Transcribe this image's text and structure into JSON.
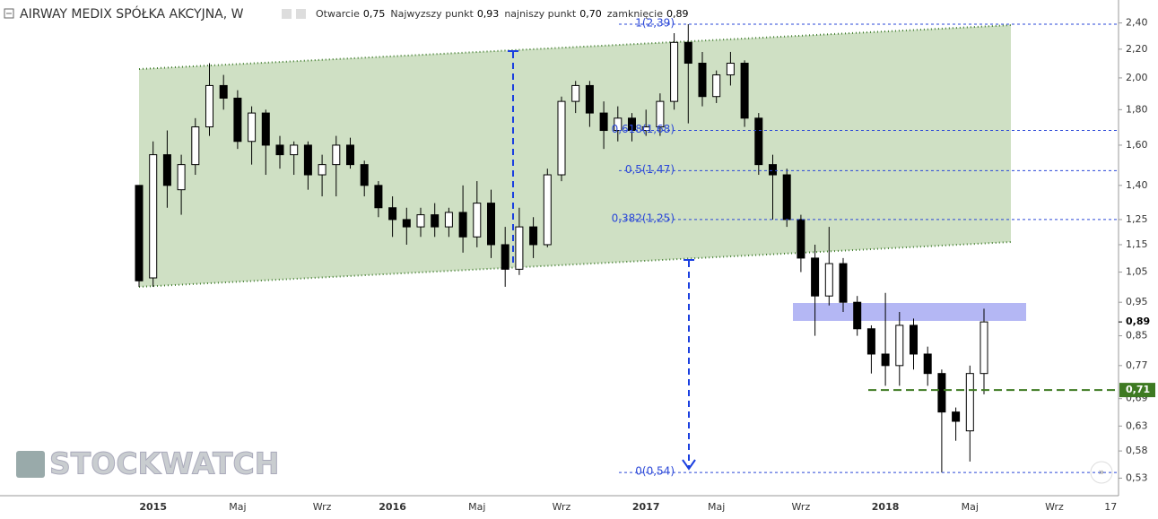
{
  "header": {
    "title": "AIRWAY MEDIX SPÓŁKA AKCYJNA, W",
    "ohlc": [
      {
        "label": "Otwarcie",
        "value": "0,75"
      },
      {
        "label": "Najwyzszy punkt",
        "value": "0,93"
      },
      {
        "label": "najniszy punkt",
        "value": "0,70"
      },
      {
        "label": "zamknięcie",
        "value": "0,89"
      }
    ]
  },
  "watermark": "STOCKWATCH",
  "chart_data": {
    "type": "candlestick",
    "log_scale": true,
    "grid": false,
    "up_color": "#ffffff",
    "down_color": "#000000",
    "categories": [
      null,
      "2015",
      null,
      null,
      null,
      null,
      null,
      "Maj",
      null,
      null,
      null,
      null,
      null,
      "Wrz",
      null,
      null,
      null,
      null,
      "2016",
      null,
      null,
      null,
      null,
      null,
      "Maj",
      null,
      null,
      null,
      null,
      null,
      "Wrz",
      null,
      null,
      null,
      null,
      null,
      "2017",
      null,
      null,
      null,
      null,
      "Maj",
      null,
      null,
      null,
      null,
      null,
      "Wrz",
      null,
      null,
      null,
      null,
      null,
      "2018",
      null,
      null,
      null,
      null,
      null,
      "Maj",
      null,
      null,
      null,
      null,
      null,
      "Wrz",
      null,
      null,
      null,
      "17"
    ],
    "open": [
      1.4,
      1.03,
      1.55,
      1.38,
      1.5,
      1.7,
      1.95,
      1.87,
      1.62,
      1.78,
      1.6,
      1.55,
      1.6,
      1.45,
      1.5,
      1.6,
      1.5,
      1.4,
      1.3,
      1.25,
      1.22,
      1.27,
      1.22,
      1.28,
      1.18,
      1.32,
      1.15,
      1.06,
      1.22,
      1.15,
      1.45,
      1.85,
      1.95,
      1.78,
      1.68,
      1.75,
      1.68,
      1.7,
      1.85,
      2.25,
      2.1,
      1.88,
      2.02,
      2.1,
      1.75,
      1.5,
      1.45,
      1.25,
      1.1,
      0.97,
      1.08,
      0.95,
      0.87,
      0.8,
      0.77,
      0.88,
      0.8,
      0.75,
      0.66,
      0.62,
      0.75,
      null,
      null,
      null,
      null,
      null,
      null,
      null,
      null,
      null
    ],
    "high": [
      1.4,
      1.62,
      1.68,
      1.55,
      1.75,
      2.1,
      2.02,
      1.92,
      1.82,
      1.8,
      1.65,
      1.62,
      1.62,
      1.55,
      1.65,
      1.64,
      1.52,
      1.42,
      1.35,
      1.3,
      1.3,
      1.32,
      1.3,
      1.4,
      1.42,
      1.38,
      1.22,
      1.3,
      1.26,
      1.48,
      1.88,
      1.98,
      1.98,
      1.85,
      1.82,
      1.78,
      1.8,
      1.9,
      2.32,
      2.39,
      2.18,
      2.05,
      2.18,
      2.12,
      1.78,
      1.55,
      1.48,
      1.27,
      1.15,
      1.22,
      1.1,
      0.97,
      0.88,
      0.98,
      0.92,
      0.9,
      0.82,
      0.76,
      0.67,
      0.77,
      0.93,
      null,
      null,
      null,
      null,
      null,
      null,
      null,
      null,
      null
    ],
    "low": [
      1.0,
      1.0,
      1.3,
      1.27,
      1.45,
      1.65,
      1.8,
      1.58,
      1.5,
      1.45,
      1.48,
      1.45,
      1.38,
      1.35,
      1.35,
      1.48,
      1.35,
      1.26,
      1.18,
      1.15,
      1.18,
      1.18,
      1.18,
      1.12,
      1.14,
      1.1,
      1.0,
      1.04,
      1.1,
      1.14,
      1.42,
      1.78,
      1.7,
      1.58,
      1.62,
      1.62,
      1.65,
      1.65,
      1.8,
      1.72,
      1.82,
      1.84,
      1.95,
      1.7,
      1.45,
      1.25,
      1.22,
      1.05,
      0.85,
      0.94,
      0.92,
      0.85,
      0.75,
      0.72,
      0.72,
      0.76,
      0.72,
      0.54,
      0.6,
      0.56,
      0.7,
      null,
      null,
      null,
      null,
      null,
      null,
      null,
      null,
      null
    ],
    "close": [
      1.02,
      1.55,
      1.4,
      1.5,
      1.7,
      1.95,
      1.87,
      1.62,
      1.78,
      1.6,
      1.55,
      1.6,
      1.45,
      1.5,
      1.6,
      1.5,
      1.4,
      1.3,
      1.25,
      1.22,
      1.27,
      1.22,
      1.28,
      1.18,
      1.32,
      1.15,
      1.06,
      1.22,
      1.15,
      1.45,
      1.85,
      1.95,
      1.78,
      1.68,
      1.75,
      1.68,
      1.7,
      1.85,
      2.25,
      2.1,
      1.88,
      2.02,
      2.1,
      1.75,
      1.5,
      1.45,
      1.25,
      1.1,
      0.97,
      1.08,
      0.95,
      0.87,
      0.8,
      0.77,
      0.88,
      0.8,
      0.75,
      0.66,
      0.64,
      0.75,
      0.89,
      null,
      null,
      null,
      null,
      null,
      null,
      null,
      null,
      null
    ],
    "ylim": [
      0.5,
      2.59
    ],
    "yticks": [
      {
        "value": 2.4,
        "label": "2,40"
      },
      {
        "value": 2.2,
        "label": "2,20"
      },
      {
        "value": 2.0,
        "label": "2,00"
      },
      {
        "value": 1.8,
        "label": "1,80"
      },
      {
        "value": 1.6,
        "label": "1,60"
      },
      {
        "value": 1.4,
        "label": "1,40"
      },
      {
        "value": 1.25,
        "label": "1,25"
      },
      {
        "value": 1.15,
        "label": "1,15"
      },
      {
        "value": 1.05,
        "label": "1,05"
      },
      {
        "value": 0.95,
        "label": "0,95"
      },
      {
        "value": 0.85,
        "label": "0,85"
      },
      {
        "value": 0.77,
        "label": "0,77"
      },
      {
        "value": 0.69,
        "label": "0,69"
      },
      {
        "value": 0.63,
        "label": "0,63"
      },
      {
        "value": 0.58,
        "label": "0,58"
      },
      {
        "value": 0.53,
        "label": "0,53"
      }
    ],
    "fib_levels": [
      {
        "value": 2.39,
        "label": "1(2,39)"
      },
      {
        "value": 1.68,
        "label": "0,618(1,68)"
      },
      {
        "value": 1.47,
        "label": "0,5(1,47)"
      },
      {
        "value": 1.25,
        "label": "0,382(1,25)"
      },
      {
        "value": 0.54,
        "label": "0(0,54)"
      }
    ],
    "fib_color": "#2a47d8",
    "last_price": {
      "value": 0.89,
      "label": "0,89"
    },
    "level_line": {
      "value": 0.71,
      "label": "0,71",
      "color": "#3e7a22"
    }
  }
}
